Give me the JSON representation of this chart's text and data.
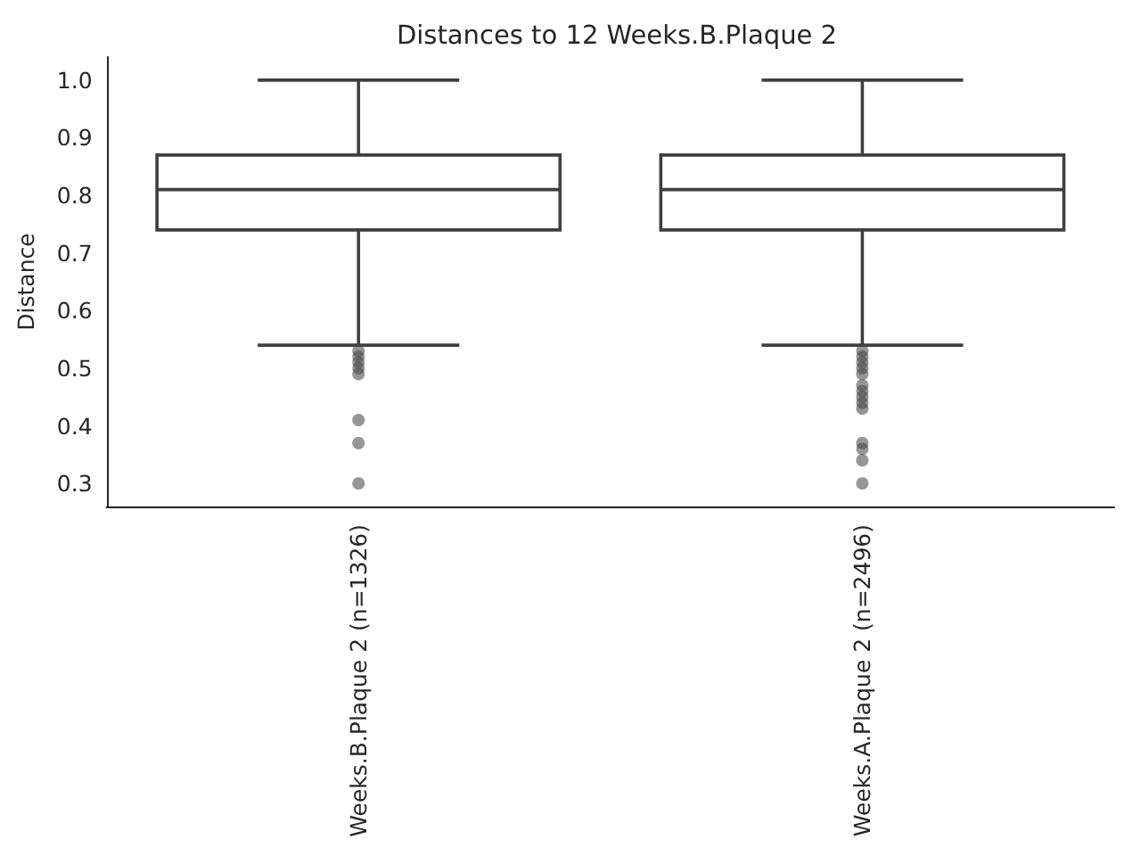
{
  "chart_data": {
    "type": "box",
    "title": "Distances to 12 Weeks.B.Plaque 2",
    "ylabel": "Distance",
    "categories": [
      "Weeks.B.Plaque 2 (n=1326)",
      "Weeks.A.Plaque 2 (n=2496)"
    ],
    "boxes": [
      {
        "low": 0.54,
        "q1": 0.74,
        "median": 0.81,
        "q3": 0.87,
        "high": 1,
        "outliers": [
          0.53,
          0.52,
          0.51,
          0.5,
          0.49,
          0.41,
          0.37,
          0.3
        ]
      },
      {
        "low": 0.54,
        "q1": 0.74,
        "median": 0.81,
        "q3": 0.87,
        "high": 1,
        "outliers": [
          0.53,
          0.52,
          0.51,
          0.5,
          0.49,
          0.47,
          0.46,
          0.45,
          0.44,
          0.43,
          0.37,
          0.36,
          0.34,
          0.3
        ]
      }
    ],
    "color": "#3f3f3f",
    "ylim": [
      0.26,
      1.04
    ],
    "yticks": [
      0.3,
      0.4,
      0.5,
      0.6,
      0.7,
      0.8,
      0.9,
      {
        "value": 1,
        "label": "1.0"
      }
    ]
  }
}
